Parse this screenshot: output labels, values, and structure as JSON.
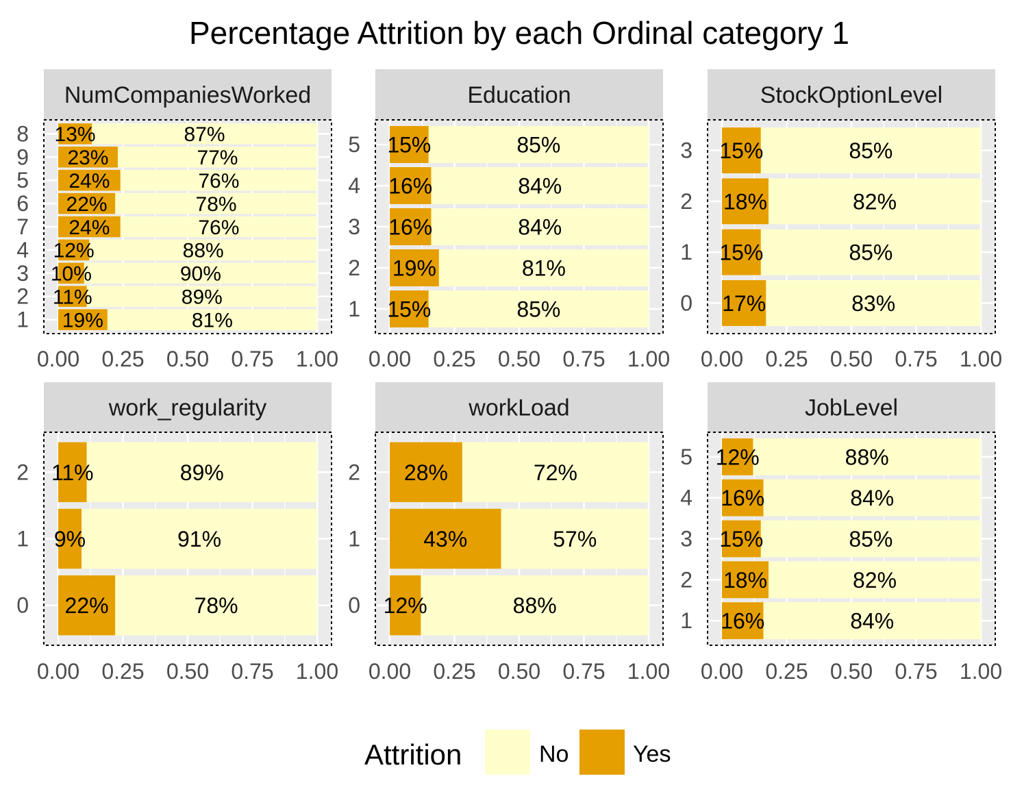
{
  "chart_data": {
    "title": "Percentage Attrition by each Ordinal category 1",
    "type": "bar",
    "orientation": "horizontal-stacked",
    "xlim": [
      0,
      1
    ],
    "x_ticks": [
      "0.00",
      "0.25",
      "0.50",
      "0.75",
      "1.00"
    ],
    "legend": {
      "title": "Attrition",
      "position": "bottom",
      "items": [
        {
          "label": "No",
          "color": "#FFFFCC"
        },
        {
          "label": "Yes",
          "color": "#E69F00"
        }
      ]
    },
    "panels": [
      {
        "name": "NumCompaniesWorked",
        "categories": [
          "8",
          "9",
          "5",
          "6",
          "7",
          "4",
          "3",
          "2",
          "1"
        ],
        "yes": [
          0.13,
          0.23,
          0.24,
          0.22,
          0.24,
          0.12,
          0.1,
          0.11,
          0.19
        ],
        "yes_labels": [
          "13%",
          "23%",
          "24%",
          "22%",
          "24%",
          "12%",
          "10%",
          "11%",
          "19%"
        ],
        "no_labels": [
          "87%",
          "77%",
          "76%",
          "78%",
          "76%",
          "88%",
          "90%",
          "89%",
          "81%"
        ]
      },
      {
        "name": "Education",
        "categories": [
          "5",
          "4",
          "3",
          "2",
          "1"
        ],
        "yes": [
          0.15,
          0.16,
          0.16,
          0.19,
          0.15
        ],
        "yes_labels": [
          "15%",
          "16%",
          "16%",
          "19%",
          "15%"
        ],
        "no_labels": [
          "85%",
          "84%",
          "84%",
          "81%",
          "85%"
        ]
      },
      {
        "name": "StockOptionLevel",
        "categories": [
          "3",
          "2",
          "1",
          "0"
        ],
        "yes": [
          0.15,
          0.18,
          0.15,
          0.17
        ],
        "yes_labels": [
          "15%",
          "18%",
          "15%",
          "17%"
        ],
        "no_labels": [
          "85%",
          "82%",
          "85%",
          "83%"
        ]
      },
      {
        "name": "work_regularity",
        "categories": [
          "2",
          "1",
          "0"
        ],
        "yes": [
          0.11,
          0.09,
          0.22
        ],
        "yes_labels": [
          "11%",
          "9%",
          "22%"
        ],
        "no_labels": [
          "89%",
          "91%",
          "78%"
        ]
      },
      {
        "name": "workLoad",
        "categories": [
          "2",
          "1",
          "0"
        ],
        "yes": [
          0.28,
          0.43,
          0.12
        ],
        "yes_labels": [
          "28%",
          "43%",
          "12%"
        ],
        "no_labels": [
          "72%",
          "57%",
          "88%"
        ]
      },
      {
        "name": "JobLevel",
        "categories": [
          "5",
          "4",
          "3",
          "2",
          "1"
        ],
        "yes": [
          0.12,
          0.16,
          0.15,
          0.18,
          0.16
        ],
        "yes_labels": [
          "12%",
          "16%",
          "15%",
          "18%",
          "16%"
        ],
        "no_labels": [
          "88%",
          "84%",
          "85%",
          "82%",
          "84%"
        ]
      }
    ]
  }
}
